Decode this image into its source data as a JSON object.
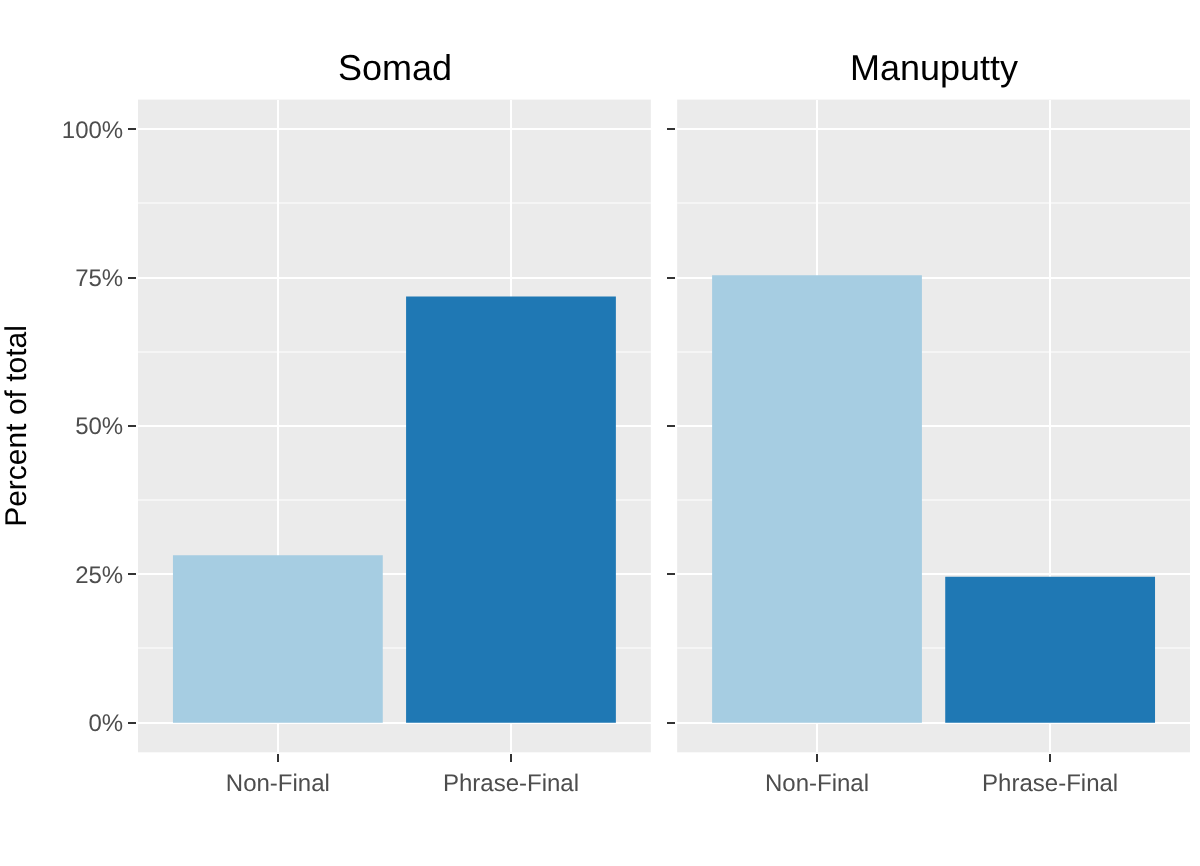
{
  "chart_data": [
    {
      "type": "bar",
      "title": "Somad",
      "ylabel": "Percent of total",
      "categories": [
        "Non-Final",
        "Phrase-Final"
      ],
      "values": [
        28.2,
        71.8
      ],
      "colors": [
        "#a6cde2",
        "#1f78b4"
      ],
      "ylim": [
        -5,
        105
      ],
      "yticks": [
        {
          "value": 0,
          "label": "0%"
        },
        {
          "value": 25,
          "label": "25%"
        },
        {
          "value": 50,
          "label": "50%"
        },
        {
          "value": 75,
          "label": "75%"
        },
        {
          "value": 100,
          "label": "100%"
        }
      ],
      "grid": true
    },
    {
      "type": "bar",
      "title": "Manuputty",
      "categories": [
        "Non-Final",
        "Phrase-Final"
      ],
      "values": [
        75.4,
        24.6
      ],
      "colors": [
        "#a6cde2",
        "#1f78b4"
      ],
      "ylim": [
        -5,
        105
      ],
      "yticks": [
        {
          "value": 0,
          "label": null
        },
        {
          "value": 25,
          "label": null
        },
        {
          "value": 50,
          "label": null
        },
        {
          "value": 75,
          "label": null
        },
        {
          "value": 100,
          "label": null
        }
      ],
      "grid": true,
      "tick_labels": "x"
    }
  ]
}
